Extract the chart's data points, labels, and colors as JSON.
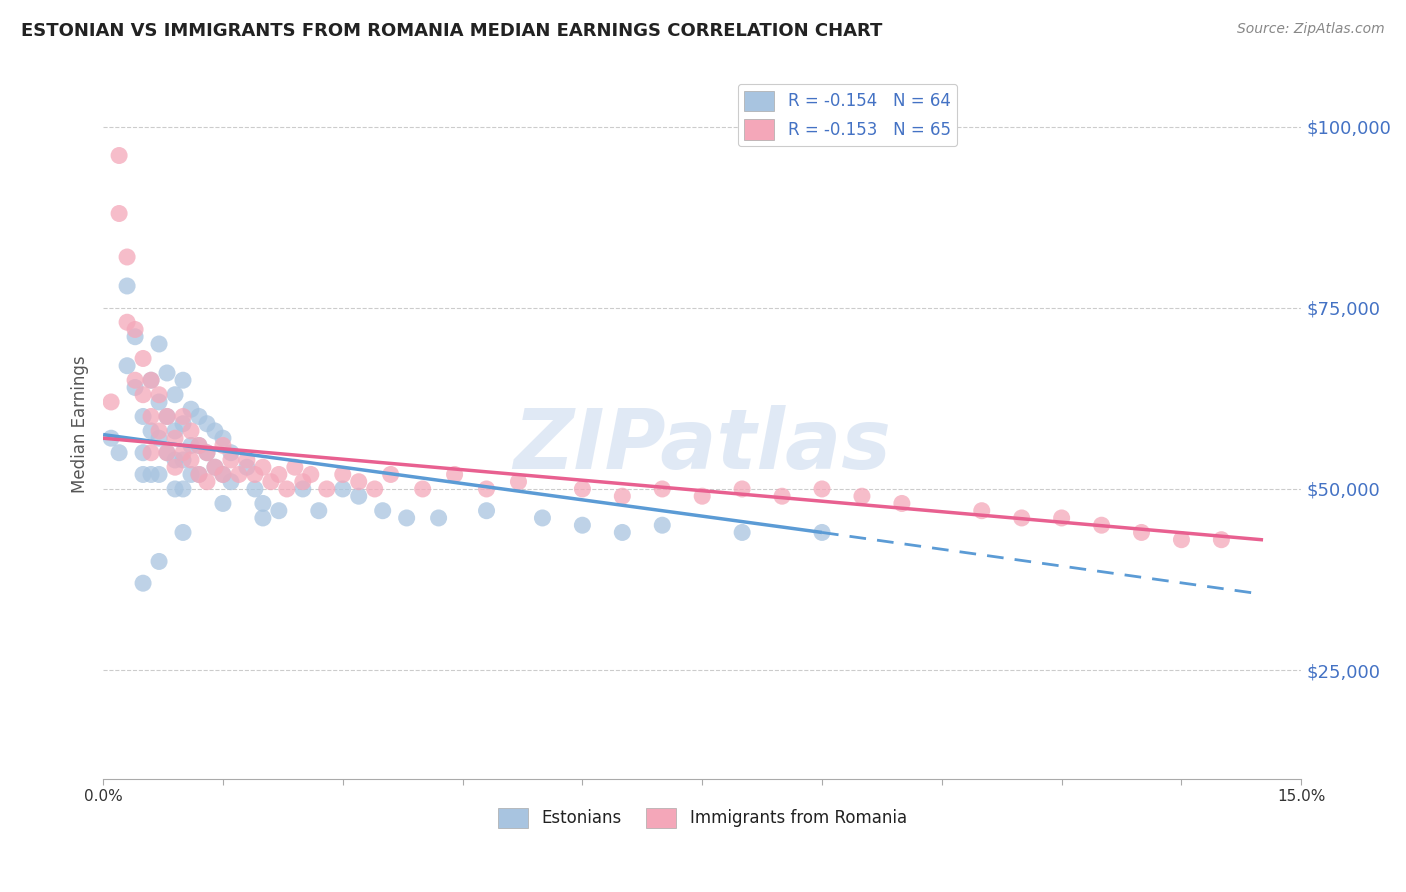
{
  "title": "ESTONIAN VS IMMIGRANTS FROM ROMANIA MEDIAN EARNINGS CORRELATION CHART",
  "source": "Source: ZipAtlas.com",
  "ylabel": "Median Earnings",
  "xlim": [
    0.0,
    0.15
  ],
  "ylim": [
    10000,
    108000
  ],
  "yticks": [
    25000,
    50000,
    75000,
    100000
  ],
  "ytick_labels": [
    "$25,000",
    "$50,000",
    "$75,000",
    "$100,000"
  ],
  "xticks": [
    0.0,
    0.015,
    0.03,
    0.045,
    0.06,
    0.075,
    0.09,
    0.105,
    0.12,
    0.135,
    0.15
  ],
  "xtick_labels": [
    "0.0%",
    "",
    "",
    "",
    "",
    "",
    "",
    "",
    "",
    "",
    "15.0%"
  ],
  "legend_r1": "R = -0.154   N = 64",
  "legend_r2": "R = -0.153   N = 65",
  "legend_label1": "Estonians",
  "legend_label2": "Immigrants from Romania",
  "color1": "#a8c4e0",
  "color2": "#f4a7b9",
  "line_color1_solid": "#5b9bd5",
  "line_color1_dash": "#5b9bd5",
  "line_color2": "#e86090",
  "background_color": "#ffffff",
  "grid_color": "#cccccc",
  "watermark": "ZIPatlas",
  "title_fontsize": 13,
  "tick_label_color_y": "#4472c4",
  "estonians_x": [
    0.001,
    0.002,
    0.003,
    0.003,
    0.004,
    0.004,
    0.005,
    0.005,
    0.005,
    0.006,
    0.006,
    0.006,
    0.007,
    0.007,
    0.007,
    0.007,
    0.008,
    0.008,
    0.008,
    0.009,
    0.009,
    0.009,
    0.009,
    0.01,
    0.01,
    0.01,
    0.01,
    0.011,
    0.011,
    0.011,
    0.012,
    0.012,
    0.012,
    0.013,
    0.013,
    0.014,
    0.014,
    0.015,
    0.015,
    0.016,
    0.016,
    0.018,
    0.019,
    0.02,
    0.022,
    0.025,
    0.027,
    0.03,
    0.032,
    0.035,
    0.038,
    0.042,
    0.048,
    0.055,
    0.06,
    0.065,
    0.07,
    0.08,
    0.09,
    0.005,
    0.007,
    0.01,
    0.015,
    0.02
  ],
  "estonians_y": [
    57000,
    55000,
    67000,
    78000,
    71000,
    64000,
    60000,
    55000,
    52000,
    65000,
    58000,
    52000,
    70000,
    62000,
    57000,
    52000,
    66000,
    60000,
    55000,
    63000,
    58000,
    54000,
    50000,
    65000,
    59000,
    54000,
    50000,
    61000,
    56000,
    52000,
    60000,
    56000,
    52000,
    59000,
    55000,
    58000,
    53000,
    57000,
    52000,
    55000,
    51000,
    53000,
    50000,
    48000,
    47000,
    50000,
    47000,
    50000,
    49000,
    47000,
    46000,
    46000,
    47000,
    46000,
    45000,
    44000,
    45000,
    44000,
    44000,
    37000,
    40000,
    44000,
    48000,
    46000
  ],
  "romania_x": [
    0.001,
    0.002,
    0.002,
    0.003,
    0.003,
    0.004,
    0.004,
    0.005,
    0.005,
    0.006,
    0.006,
    0.006,
    0.007,
    0.007,
    0.008,
    0.008,
    0.009,
    0.009,
    0.01,
    0.01,
    0.011,
    0.011,
    0.012,
    0.012,
    0.013,
    0.013,
    0.014,
    0.015,
    0.015,
    0.016,
    0.017,
    0.018,
    0.019,
    0.02,
    0.021,
    0.022,
    0.023,
    0.024,
    0.025,
    0.026,
    0.028,
    0.03,
    0.032,
    0.034,
    0.036,
    0.04,
    0.044,
    0.048,
    0.052,
    0.06,
    0.065,
    0.07,
    0.075,
    0.08,
    0.085,
    0.09,
    0.095,
    0.1,
    0.11,
    0.115,
    0.12,
    0.125,
    0.13,
    0.135,
    0.14
  ],
  "romania_y": [
    62000,
    96000,
    88000,
    82000,
    73000,
    72000,
    65000,
    68000,
    63000,
    65000,
    60000,
    55000,
    63000,
    58000,
    60000,
    55000,
    57000,
    53000,
    60000,
    55000,
    58000,
    54000,
    56000,
    52000,
    55000,
    51000,
    53000,
    56000,
    52000,
    54000,
    52000,
    54000,
    52000,
    53000,
    51000,
    52000,
    50000,
    53000,
    51000,
    52000,
    50000,
    52000,
    51000,
    50000,
    52000,
    50000,
    52000,
    50000,
    51000,
    50000,
    49000,
    50000,
    49000,
    50000,
    49000,
    50000,
    49000,
    48000,
    47000,
    46000,
    46000,
    45000,
    44000,
    43000,
    43000
  ],
  "trendline1_x0": 0.0,
  "trendline1_y0": 57500,
  "trendline1_x1": 0.09,
  "trendline1_y1": 44000,
  "trendline1_dash_x0": 0.09,
  "trendline1_dash_y0": 44000,
  "trendline1_dash_x1": 0.145,
  "trendline1_dash_y1": 35500,
  "trendline2_x0": 0.0,
  "trendline2_y0": 57000,
  "trendline2_x1": 0.145,
  "trendline2_y1": 43000
}
